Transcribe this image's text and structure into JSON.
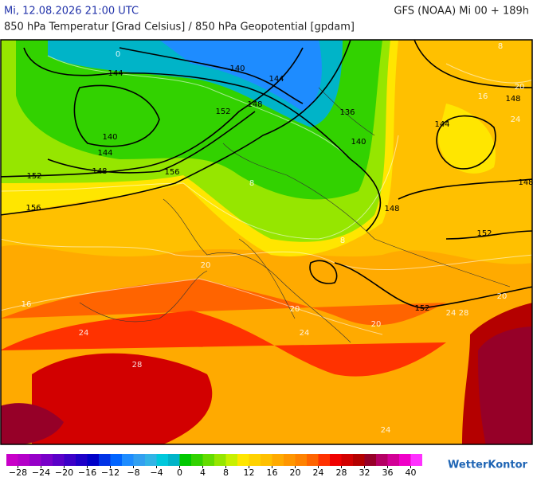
{
  "header": {
    "date": "Mi, 12.08.2026 21:00 UTC",
    "model": "GFS (NOAA) Mi 00 + 189h",
    "subtitle": "850 hPa Temperatur [Grad Celsius] / 850 hPa Geopotential [gpdam]"
  },
  "geopotential_labels": [
    140,
    144,
    144,
    148,
    152,
    136,
    140,
    144,
    140,
    144,
    148,
    148,
    156,
    152,
    156,
    148,
    152,
    148,
    152
  ],
  "isotherm_labels": [
    0,
    8,
    20,
    16,
    24,
    8,
    8,
    16,
    20,
    24,
    28,
    24,
    20,
    24,
    28,
    20,
    24,
    20
  ],
  "colorbar": {
    "lim": [
      -30,
      42
    ],
    "step": 2,
    "colors": [
      "#c800c8",
      "#b400c8",
      "#9600c8",
      "#7800c8",
      "#5a00c8",
      "#3c00c8",
      "#1e00c8",
      "#0000c8",
      "#0032e6",
      "#0064ff",
      "#1e8cff",
      "#32a0f0",
      "#32b4e6",
      "#00c8dc",
      "#00b4c8",
      "#00c800",
      "#32d200",
      "#64dc00",
      "#96e600",
      "#c8f000",
      "#ffe600",
      "#ffd200",
      "#ffc000",
      "#ffaa00",
      "#ff9600",
      "#ff8200",
      "#ff6400",
      "#ff3200",
      "#f00000",
      "#d20000",
      "#b40000",
      "#960028",
      "#b40064",
      "#d20096",
      "#f000c8",
      "#ff32ff"
    ],
    "ticks": [
      {
        "value": -28,
        "label": "−28"
      },
      {
        "value": -24,
        "label": "−24"
      },
      {
        "value": -20,
        "label": "−20"
      },
      {
        "value": -16,
        "label": "−16"
      },
      {
        "value": -12,
        "label": "−12"
      },
      {
        "value": -8,
        "label": "−8"
      },
      {
        "value": -4,
        "label": "−4"
      },
      0,
      4,
      8,
      12,
      16,
      20,
      24,
      28,
      32,
      36,
      40
    ]
  },
  "logo": "WetterKontor"
}
